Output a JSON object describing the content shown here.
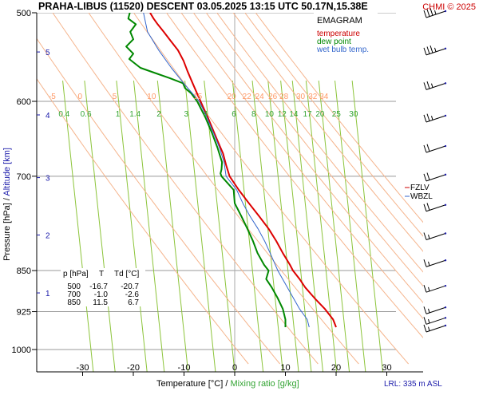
{
  "chart_data": {
    "type": "line",
    "title": "PRAHA-LIBUS (11520)  DESCENT  03.05.2025 13:15 UTC  50.17N,15.38E",
    "credit": "CHMI © 2025",
    "xlabel": "Temperature [°C]",
    "xlabel_sep": "  /  ",
    "xlabel2": "Mixing ratio [g/kg]",
    "ylabel": "Pressure [hPa]",
    "ylabel_sep": "  /  ",
    "ylabel2": "Altitude [km]",
    "y_scale": "log",
    "xlim": [
      -39.5,
      41
    ],
    "ylim": [
      1000,
      500
    ],
    "x_ticks": [
      -30,
      -20,
      -10,
      0,
      10,
      20,
      30
    ],
    "pressure_ticks": [
      500,
      600,
      700,
      850,
      925,
      1000
    ],
    "altitude_ticks": [
      {
        "label": "1",
        "p": 890
      },
      {
        "label": "2",
        "p": 790
      },
      {
        "label": "3",
        "p": 702
      },
      {
        "label": "4",
        "p": 617
      },
      {
        "label": "5",
        "p": 542
      }
    ],
    "mixing_ratio_lines": [
      {
        "label": "0.4",
        "value": 0.4,
        "t600": -33.5
      },
      {
        "label": "0.6",
        "value": 0.6,
        "t600": -29.2
      },
      {
        "label": "1",
        "value": 1,
        "t600": -22.9
      },
      {
        "label": "1.4",
        "value": 1.4,
        "t600": -19.5
      },
      {
        "label": "2",
        "value": 2,
        "t600": -14.8
      },
      {
        "label": "3",
        "value": 3,
        "t600": -9.4
      },
      {
        "label": "4",
        "value": 4,
        "t600": -5.6
      },
      {
        "label": "6",
        "value": 6,
        "t600": 0
      },
      {
        "label": "8",
        "value": 8,
        "t600": 3.9
      },
      {
        "label": "10",
        "value": 10,
        "t600": 7.0
      },
      {
        "label": "12",
        "value": 12,
        "t600": 9.5
      },
      {
        "label": "14",
        "value": 14,
        "t600": 11.8
      },
      {
        "label": "17",
        "value": 17,
        "t600": 14.5
      },
      {
        "label": "20",
        "value": 20,
        "t600": 17.0
      },
      {
        "label": "25",
        "value": 25,
        "t600": 20.2
      },
      {
        "label": "30",
        "value": 30,
        "t600": 23.6
      }
    ],
    "dry_adiabats": [
      {
        "label": "-5",
        "value": -5,
        "t600": -36.0
      },
      {
        "label": "0",
        "value": 0,
        "t600": -30.5
      },
      {
        "label": "5",
        "value": 5,
        "t600": -23.7
      },
      {
        "label": "10",
        "value": 10,
        "t600": -16.4
      },
      {
        "label": "15",
        "value": 15,
        "t600": -7.3
      },
      {
        "label": "20",
        "value": 20,
        "t600": -0.6
      },
      {
        "label": "22",
        "value": 22,
        "t600": 2.4
      },
      {
        "label": "24",
        "value": 24,
        "t600": 4.9
      },
      {
        "label": "26",
        "value": 26,
        "t600": 7.5
      },
      {
        "label": "28",
        "value": 28,
        "t600": 9.7
      },
      {
        "label": "30",
        "value": 30,
        "t600": 13.0
      },
      {
        "label": "32",
        "value": 32,
        "t600": 15.4
      },
      {
        "label": "34",
        "value": 34,
        "t600": 17.6
      }
    ],
    "series": [
      {
        "name": "temperature",
        "color": "#dd0000",
        "points": [
          [
            500,
            -16.7
          ],
          [
            506,
            -16.0
          ],
          [
            512,
            -15.2
          ],
          [
            520,
            -14.0
          ],
          [
            530,
            -12.6
          ],
          [
            540,
            -11.2
          ],
          [
            552,
            -10.1
          ],
          [
            564,
            -9.3
          ],
          [
            578,
            -8.3
          ],
          [
            592,
            -7.3
          ],
          [
            606,
            -6.3
          ],
          [
            620,
            -5.3
          ],
          [
            636,
            -4.3
          ],
          [
            652,
            -3.3
          ],
          [
            668,
            -2.3
          ],
          [
            684,
            -1.7
          ],
          [
            700,
            -1.0
          ],
          [
            720,
            0.8
          ],
          [
            740,
            2.8
          ],
          [
            760,
            4.8
          ],
          [
            780,
            6.7
          ],
          [
            800,
            8.2
          ],
          [
            820,
            9.5
          ],
          [
            840,
            10.9
          ],
          [
            850,
            11.5
          ],
          [
            865,
            12.8
          ],
          [
            880,
            13.9
          ],
          [
            900,
            15.8
          ],
          [
            920,
            17.8
          ],
          [
            940,
            19.4
          ],
          [
            955,
            20.0
          ]
        ]
      },
      {
        "name": "dew point",
        "color": "#008800",
        "points": [
          [
            500,
            -20.7
          ],
          [
            506,
            -21.0
          ],
          [
            512,
            -19.5
          ],
          [
            520,
            -20.6
          ],
          [
            528,
            -20.0
          ],
          [
            536,
            -21.4
          ],
          [
            544,
            -20.0
          ],
          [
            550,
            -20.8
          ],
          [
            560,
            -18.6
          ],
          [
            566,
            -15.7
          ],
          [
            572,
            -12.8
          ],
          [
            578,
            -10.2
          ],
          [
            584,
            -9.8
          ],
          [
            590,
            -8.6
          ],
          [
            600,
            -7.4
          ],
          [
            620,
            -5.8
          ],
          [
            640,
            -4.5
          ],
          [
            660,
            -3.4
          ],
          [
            680,
            -2.5
          ],
          [
            690,
            -2.6
          ],
          [
            696,
            -2.8
          ],
          [
            700,
            -2.6
          ],
          [
            720,
            -0.2
          ],
          [
            740,
            0.0
          ],
          [
            760,
            1.3
          ],
          [
            780,
            2.5
          ],
          [
            800,
            3.6
          ],
          [
            820,
            4.5
          ],
          [
            840,
            5.8
          ],
          [
            850,
            6.7
          ],
          [
            865,
            6.2
          ],
          [
            880,
            7.3
          ],
          [
            900,
            8.5
          ],
          [
            920,
            9.5
          ],
          [
            940,
            10.0
          ],
          [
            955,
            10.0
          ]
        ]
      },
      {
        "name": "wet bulb temp.",
        "color": "#3366cc",
        "points": [
          [
            500,
            -18.0
          ],
          [
            520,
            -17.2
          ],
          [
            540,
            -15.0
          ],
          [
            560,
            -12.5
          ],
          [
            580,
            -9.8
          ],
          [
            600,
            -7.0
          ],
          [
            620,
            -5.5
          ],
          [
            640,
            -4.2
          ],
          [
            660,
            -3.0
          ],
          [
            680,
            -2.1
          ],
          [
            700,
            -1.7
          ],
          [
            720,
            0.4
          ],
          [
            740,
            1.6
          ],
          [
            760,
            3.0
          ],
          [
            780,
            4.6
          ],
          [
            800,
            5.9
          ],
          [
            820,
            7.0
          ],
          [
            850,
            8.5
          ],
          [
            880,
            10.4
          ],
          [
            900,
            11.6
          ],
          [
            920,
            12.8
          ],
          [
            940,
            14.3
          ],
          [
            955,
            14.7
          ]
        ]
      }
    ],
    "legend": {
      "title": "EMAGRAM",
      "items": [
        {
          "label": "temperature",
          "color": "#cc0000"
        },
        {
          "label": "dew point",
          "color": "#008800"
        },
        {
          "label": "wet bulb temp.",
          "color": "#3366cc"
        }
      ]
    },
    "levels": [
      {
        "label": "FZLV",
        "color": "#cc0000"
      },
      {
        "label": "WBZL",
        "color": "#3366cc"
      }
    ],
    "table": {
      "headers": [
        "p [hPa]",
        "T",
        "Td [°C]"
      ],
      "rows": [
        [
          "500",
          "-16.7",
          "-20.7"
        ],
        [
          "700",
          "-1.0",
          "-2.6"
        ],
        [
          "850",
          "11.5",
          "6.7"
        ]
      ]
    },
    "wind_barbs": [
      {
        "p": 500,
        "dir": 260,
        "speed": 35
      },
      {
        "p": 540,
        "dir": 255,
        "speed": 35
      },
      {
        "p": 580,
        "dir": 250,
        "speed": 25
      },
      {
        "p": 620,
        "dir": 250,
        "speed": 25
      },
      {
        "p": 660,
        "dir": 255,
        "speed": 20
      },
      {
        "p": 700,
        "dir": 250,
        "speed": 20
      },
      {
        "p": 745,
        "dir": 250,
        "speed": 20
      },
      {
        "p": 790,
        "dir": 260,
        "speed": 15
      },
      {
        "p": 835,
        "dir": 260,
        "speed": 15
      },
      {
        "p": 880,
        "dir": 270,
        "speed": 15
      },
      {
        "p": 920,
        "dir": 270,
        "speed": 15
      },
      {
        "p": 940,
        "dir": 270,
        "speed": 15
      },
      {
        "p": 955,
        "dir": 275,
        "speed": 15
      }
    ],
    "lrl_note": "LRL: 335 m ASL"
  }
}
